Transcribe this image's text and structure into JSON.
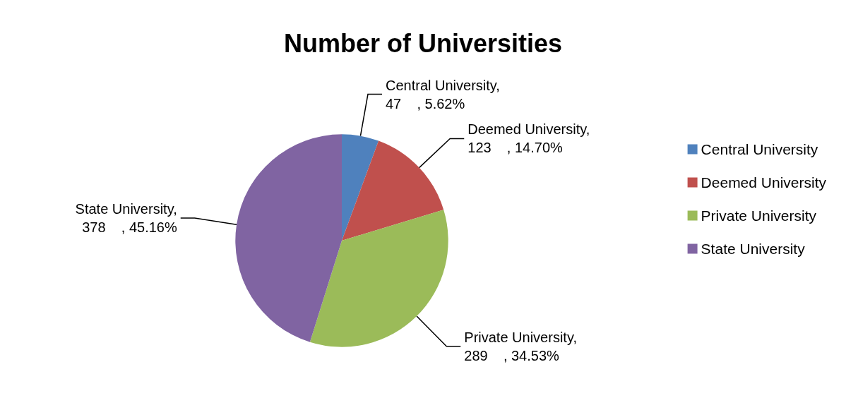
{
  "chart_data": {
    "type": "pie",
    "title": "Number of Universities",
    "categories": [
      "Central University",
      "Deemed University",
      "Private University",
      "State University"
    ],
    "values": [
      47,
      123,
      289,
      378
    ],
    "colors": [
      "#4f81bd",
      "#c0504d",
      "#9bbb59",
      "#8064a2"
    ],
    "value_labels": [
      ",\n47    , 5.62%",
      ",\n123    , 14.70%",
      ",\n289    , 34.53%",
      ",\n378    , 45.16%"
    ],
    "legend": "right"
  }
}
